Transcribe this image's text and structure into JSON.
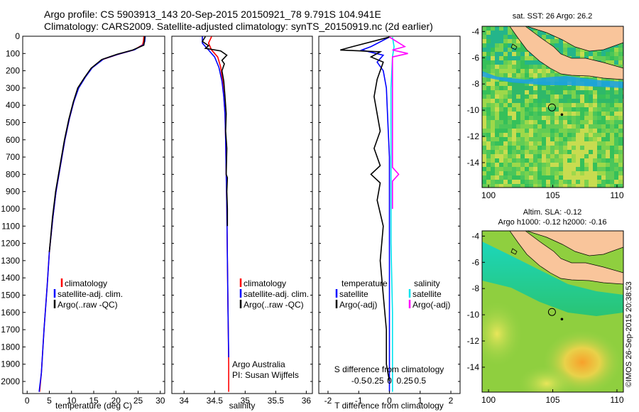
{
  "header": {
    "line1": "Argo profile: CS 5903913_143 20-Sep-2015 20150921_78 9.791S 104.941E",
    "line2": "Climatology: CARS2009. Satellite-adjusted climatology: synTS_20150919.nc (2d earlier)"
  },
  "copyright": "©IMOS 26-Sep-2015 20:38:53",
  "chart_data": [
    {
      "type": "line",
      "id": "temperature",
      "xlabel": "temperature (deg C)",
      "xlim": [
        -1,
        31
      ],
      "xticks": [
        0,
        5,
        10,
        15,
        20,
        25,
        30
      ],
      "ylim": [
        0,
        2070
      ],
      "yticks": [
        0,
        100,
        200,
        300,
        400,
        500,
        600,
        700,
        800,
        900,
        1000,
        1100,
        1200,
        1300,
        1400,
        1500,
        1600,
        1700,
        1800,
        1900,
        2000
      ],
      "legend": [
        "climatology",
        "satellite-adj. clim.",
        "Argo(..raw -QC)"
      ],
      "series": [
        {
          "name": "climatology",
          "color": "#ff0000",
          "points": [
            [
              26.3,
              2
            ],
            [
              26.2,
              30
            ],
            [
              26.0,
              50
            ],
            [
              24.0,
              80
            ],
            [
              20.5,
              105
            ],
            [
              17.0,
              135
            ],
            [
              14.5,
              185
            ],
            [
              13.0,
              240
            ],
            [
              11.5,
              300
            ],
            [
              10.5,
              380
            ],
            [
              9.5,
              480
            ],
            [
              8.5,
              600
            ],
            [
              7.5,
              750
            ],
            [
              6.5,
              900
            ],
            [
              5.8,
              1050
            ],
            [
              5.0,
              1250
            ],
            [
              4.5,
              1450
            ],
            [
              3.8,
              1700
            ],
            [
              3.2,
              1950
            ],
            [
              2.8,
              2060
            ]
          ]
        },
        {
          "name": "satellite-adj. clim.",
          "color": "#0000ff",
          "points": [
            [
              26.6,
              2
            ],
            [
              26.5,
              30
            ],
            [
              26.2,
              50
            ],
            [
              24.2,
              78
            ],
            [
              20.8,
              102
            ],
            [
              17.2,
              132
            ],
            [
              14.7,
              182
            ],
            [
              13.1,
              238
            ],
            [
              11.6,
              300
            ],
            [
              10.5,
              380
            ],
            [
              9.5,
              480
            ],
            [
              8.5,
              600
            ],
            [
              7.5,
              750
            ],
            [
              6.5,
              900
            ],
            [
              5.8,
              1050
            ],
            [
              5.0,
              1250
            ],
            [
              4.5,
              1450
            ],
            [
              3.8,
              1700
            ],
            [
              3.2,
              1950
            ],
            [
              2.7,
              2060
            ]
          ]
        },
        {
          "name": "Argo(..raw -QC)",
          "color": "#000000",
          "points": [
            [
              26.5,
              2
            ],
            [
              26.4,
              30
            ],
            [
              26.3,
              52
            ],
            [
              23.8,
              80
            ],
            [
              20.2,
              105
            ],
            [
              16.8,
              135
            ],
            [
              14.4,
              185
            ],
            [
              12.9,
              240
            ],
            [
              11.4,
              300
            ],
            [
              10.4,
              380
            ],
            [
              9.4,
              480
            ],
            [
              8.4,
              600
            ],
            [
              7.4,
              750
            ],
            [
              6.4,
              900
            ],
            [
              5.7,
              1050
            ],
            [
              5.0,
              1250
            ]
          ]
        }
      ]
    },
    {
      "type": "line",
      "id": "salinity",
      "xlabel": "salinity",
      "xlim": [
        33.8,
        36.1
      ],
      "xticks": [
        34,
        34.5,
        35,
        35.5,
        36
      ],
      "ylim": [
        0,
        2070
      ],
      "legend": [
        "climatology",
        "satellite-adj. clim.",
        "Argo(..raw -QC)"
      ],
      "annotation": [
        "Argo Australia",
        "PI: Susan Wijffels"
      ],
      "series": [
        {
          "name": "climatology",
          "color": "#ff0000",
          "points": [
            [
              34.45,
              2
            ],
            [
              34.4,
              40
            ],
            [
              34.45,
              80
            ],
            [
              34.55,
              120
            ],
            [
              34.6,
              180
            ],
            [
              34.63,
              260
            ],
            [
              34.65,
              350
            ],
            [
              34.67,
              450
            ],
            [
              34.68,
              600
            ],
            [
              34.69,
              800
            ],
            [
              34.7,
              1000
            ],
            [
              34.71,
              1300
            ],
            [
              34.72,
              1600
            ],
            [
              34.73,
              1900
            ],
            [
              34.73,
              2060
            ]
          ]
        },
        {
          "name": "satellite-adj. clim.",
          "color": "#0000ff",
          "points": [
            [
              34.3,
              2
            ],
            [
              34.3,
              40
            ],
            [
              34.4,
              80
            ],
            [
              34.5,
              120
            ],
            [
              34.57,
              180
            ],
            [
              34.62,
              260
            ],
            [
              34.65,
              350
            ],
            [
              34.67,
              450
            ],
            [
              34.68,
              600
            ],
            [
              34.69,
              800
            ],
            [
              34.7,
              1000
            ],
            [
              34.71,
              1300
            ],
            [
              34.72,
              1600
            ],
            [
              34.73,
              1860
            ]
          ]
        },
        {
          "name": "Argo(..raw -QC)",
          "color": "#000000",
          "points": [
            [
              34.35,
              2
            ],
            [
              34.3,
              30
            ],
            [
              34.4,
              55
            ],
            [
              34.35,
              70
            ],
            [
              34.6,
              85
            ],
            [
              34.7,
              110
            ],
            [
              34.62,
              140
            ],
            [
              34.66,
              160
            ],
            [
              34.62,
              200
            ],
            [
              34.65,
              260
            ],
            [
              34.67,
              350
            ],
            [
              34.69,
              450
            ],
            [
              34.68,
              550
            ],
            [
              34.7,
              650
            ],
            [
              34.69,
              800
            ],
            [
              34.71,
              820
            ],
            [
              34.7,
              900
            ],
            [
              34.71,
              1000
            ],
            [
              34.71,
              1100
            ]
          ]
        }
      ]
    },
    {
      "type": "line",
      "id": "differences",
      "xlabel": "T difference from climatology",
      "xlabel_top": "S difference from climatology",
      "xlim": [
        -2.3,
        2.3
      ],
      "xticks": [
        -2,
        -1,
        0,
        1,
        2
      ],
      "xticks_top": [
        "-0.5",
        "-0.25",
        "0",
        "0.25",
        "0.5"
      ],
      "ylim": [
        0,
        2070
      ],
      "legend_left_title": "temperature",
      "legend_right_title": "salinity",
      "legend_left": [
        "satellite",
        "Argo(-adj)"
      ],
      "legend_right": [
        "satellite",
        "Argo(-adj)"
      ],
      "series": [
        {
          "name": "satellite",
          "color": "#0000ff",
          "points": [
            [
              0,
              5
            ],
            [
              -0.6,
              60
            ],
            [
              -0.9,
              80
            ],
            [
              -0.2,
              110
            ],
            [
              -0.4,
              150
            ],
            [
              -0.2,
              200
            ],
            [
              -0.1,
              300
            ],
            [
              -0.05,
              500
            ],
            [
              0,
              700
            ],
            [
              0,
              1000
            ],
            [
              0,
              1500
            ],
            [
              0,
              2060
            ]
          ]
        },
        {
          "name": "Argo(-adj)",
          "color": "#000000",
          "points": [
            [
              0,
              5
            ],
            [
              -1.2,
              60
            ],
            [
              -1.6,
              80
            ],
            [
              -0.3,
              90
            ],
            [
              -0.6,
              120
            ],
            [
              -0.2,
              150
            ],
            [
              -0.4,
              250
            ],
            [
              -0.5,
              350
            ],
            [
              -0.4,
              450
            ],
            [
              -0.3,
              550
            ],
            [
              -0.5,
              650
            ],
            [
              -0.3,
              750
            ],
            [
              -0.6,
              800
            ],
            [
              -0.3,
              850
            ],
            [
              -0.4,
              950
            ],
            [
              -0.2,
              1100
            ],
            [
              -0.3,
              1300
            ],
            [
              -0.2,
              1500
            ],
            [
              -0.1,
              1700
            ],
            [
              -0.1,
              1900
            ],
            [
              0,
              2000
            ]
          ]
        },
        {
          "name": "satellite",
          "color": "#00e5ee",
          "points": [
            [
              0.1,
              5
            ],
            [
              0.15,
              60
            ],
            [
              0.1,
              120
            ],
            [
              0.05,
              300
            ],
            [
              0.05,
              700
            ],
            [
              0.05,
              1200
            ],
            [
              0.1,
              1600
            ],
            [
              0.1,
              2060
            ]
          ]
        },
        {
          "name": "Argo(-adj)",
          "color": "#ff00ff",
          "points": [
            [
              0.0,
              5
            ],
            [
              0.5,
              60
            ],
            [
              0.1,
              80
            ],
            [
              0.6,
              100
            ],
            [
              0.1,
              120
            ],
            [
              0.1,
              300
            ],
            [
              0.1,
              500
            ],
            [
              0.1,
              760
            ],
            [
              0.3,
              800
            ],
            [
              0.1,
              840
            ],
            [
              0.1,
              1000
            ]
          ]
        }
      ]
    },
    {
      "type": "heatmap",
      "id": "sst-map",
      "title": "sat. SST: 26 Argo: 26.2",
      "xlim": [
        99.5,
        110.5
      ],
      "xticks": [
        100,
        105,
        110
      ],
      "ylim": [
        -15.9,
        -3.6
      ],
      "yticks": [
        -4,
        -6,
        -8,
        -10,
        -12,
        -14
      ],
      "marker": [
        104.94,
        -9.79
      ]
    },
    {
      "type": "heatmap",
      "id": "sla-map",
      "title": "Altim. SLA: -0.12",
      "subtitle": "Argo h1000: -0.12 h2000: -0.16",
      "xlim": [
        99.5,
        110.5
      ],
      "xticks": [
        100,
        105,
        110
      ],
      "ylim": [
        -15.9,
        -3.6
      ],
      "yticks": [
        -4,
        -6,
        -8,
        -10,
        -12,
        -14
      ],
      "marker": [
        104.94,
        -9.79
      ]
    }
  ]
}
